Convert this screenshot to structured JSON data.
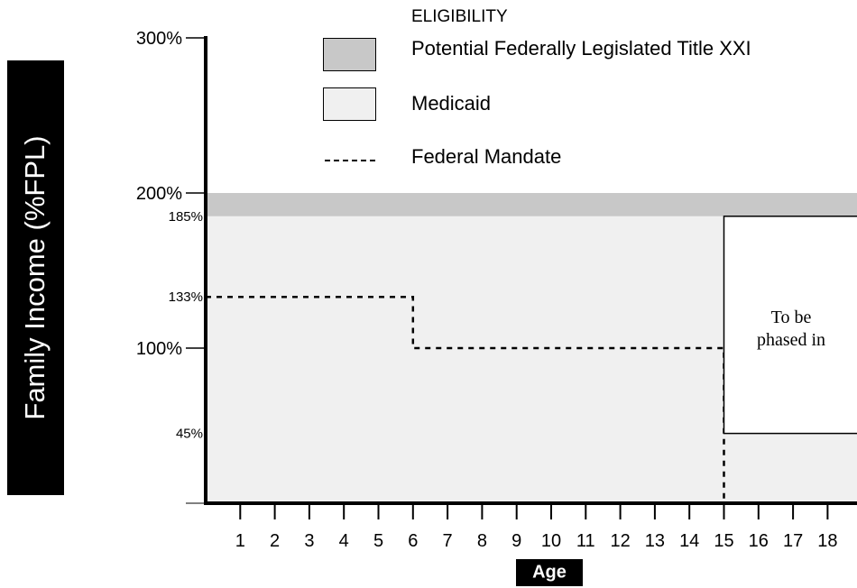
{
  "chart_data": {
    "type": "step-area",
    "y_axis": {
      "label": "Family Income (%FPL)",
      "range": [
        0,
        300
      ],
      "tick_values": [
        100,
        200,
        300
      ],
      "tick_labels": [
        "100%",
        "200%",
        "300%"
      ],
      "annotation_values": [
        45,
        133,
        185
      ],
      "annotation_labels": [
        "45%",
        "133%",
        "185%"
      ]
    },
    "x_axis": {
      "label": "Age",
      "range": [
        0,
        19
      ],
      "categories": [
        "1",
        "2",
        "3",
        "4",
        "5",
        "6",
        "7",
        "8",
        "9",
        "10",
        "11",
        "12",
        "13",
        "14",
        "15",
        "16",
        "17",
        "18"
      ]
    },
    "legend": {
      "title": "ELIGIBILITY",
      "position": "top",
      "entries": [
        {
          "key": "title21",
          "label": "Potential Federally Legislated Title XXI",
          "color": "#c8c8c8"
        },
        {
          "key": "medicaid",
          "label": "Medicaid",
          "color": "#f0f0f0"
        },
        {
          "key": "mandate",
          "label": "Federal Mandate",
          "style": "dashed"
        }
      ]
    },
    "regions": {
      "title21_band": {
        "y_from": 185,
        "y_to": 200,
        "x_from": 0,
        "x_to": 19,
        "color": "#c8c8c8"
      },
      "medicaid": {
        "y_from": 0,
        "y_to": 185,
        "x_from": 0,
        "x_to": 19,
        "color": "#f0f0f0"
      }
    },
    "federal_mandate": [
      {
        "x": 0,
        "y": 133
      },
      {
        "x": 6,
        "y": 133
      },
      {
        "x": 6,
        "y": 100
      },
      {
        "x": 15,
        "y": 100
      },
      {
        "x": 15,
        "y": 0
      }
    ],
    "phase_in_box": {
      "x_from": 15,
      "x_to": 19,
      "y_from": 45,
      "y_to": 185,
      "text_line1": "To be",
      "text_line2": "phased in"
    },
    "grid": false
  }
}
